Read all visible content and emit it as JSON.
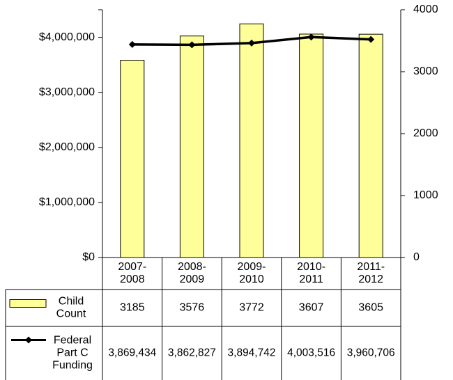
{
  "chart_data": {
    "type": "bar",
    "categories": [
      "2007-2008",
      "2008-2009",
      "2009-2010",
      "2010-2011",
      "2011-2012"
    ],
    "category_lines": [
      [
        "2007-",
        "2008"
      ],
      [
        "2008-",
        "2009"
      ],
      [
        "2009-",
        "2010"
      ],
      [
        "2010-",
        "2011"
      ],
      [
        "2011-",
        "2012"
      ]
    ],
    "series": [
      {
        "name": "Child Count",
        "name_lines": [
          "Child",
          "Count"
        ],
        "type": "bar",
        "axis": "right",
        "values": [
          3185,
          3576,
          3772,
          3607,
          3605
        ],
        "table_values": [
          "3185",
          "3576",
          "3772",
          "3607",
          "3605"
        ],
        "color": "#ffff99",
        "stroke": "#000000"
      },
      {
        "name": "Federal Part C Funding",
        "name_lines": [
          "Federal",
          "Part C",
          "Funding"
        ],
        "type": "line",
        "axis": "left",
        "values": [
          3869434,
          3862827,
          3894742,
          4003516,
          3960706
        ],
        "table_values": [
          "3,869,434",
          "3,862,827",
          "3,894,742",
          "4,003,516",
          "3,960,706"
        ],
        "color": "#000000",
        "marker": "diamond"
      }
    ],
    "y_left": {
      "ylim": [
        0,
        4500000
      ],
      "ticks": [
        0,
        1000000,
        2000000,
        3000000,
        4000000
      ],
      "tick_labels": [
        "$0",
        "$1,000,000",
        "$2,000,000",
        "$3,000,000",
        "$4,000,000"
      ]
    },
    "y_right": {
      "ylim": [
        0,
        4000
      ],
      "ticks": [
        0,
        1000,
        2000,
        3000,
        4000
      ],
      "tick_labels": [
        "0",
        "1000",
        "2000",
        "3000",
        "4000"
      ]
    },
    "grid": false,
    "legend": "data-table"
  }
}
